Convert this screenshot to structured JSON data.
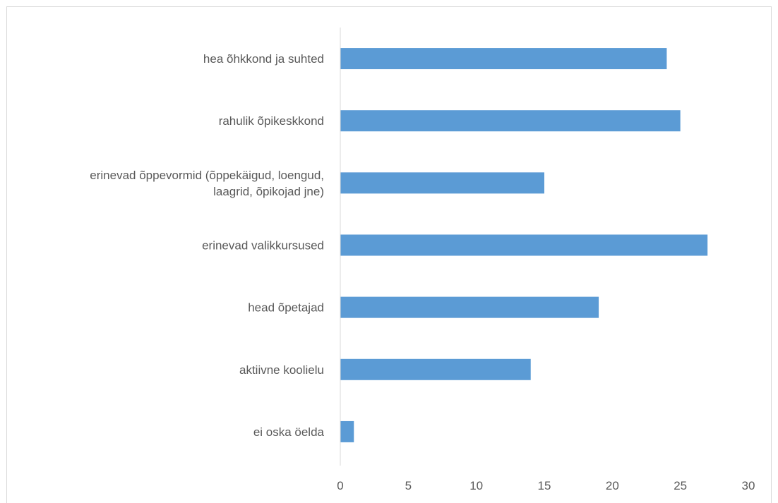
{
  "chart_data": {
    "type": "bar",
    "orientation": "horizontal",
    "categories": [
      [
        "hea õhkkond ja suhted"
      ],
      [
        "rahulik õpikeskkond"
      ],
      [
        "erinevad õppevormid (õppekäigud, loengud,",
        "laagrid, õpikojad jne)"
      ],
      [
        "erinevad valikkursused"
      ],
      [
        "head õpetajad"
      ],
      [
        "aktiivne koolielu"
      ],
      [
        "ei oska öelda"
      ]
    ],
    "values": [
      24,
      25,
      15,
      27,
      19,
      14,
      1
    ],
    "xlim": [
      0,
      30
    ],
    "xticks": [
      "0",
      "5",
      "10",
      "15",
      "20",
      "25",
      "30"
    ],
    "bar_color": "#5b9bd5",
    "axis_color": "#d9d9d9",
    "grid": false,
    "legend": "none",
    "title": "",
    "xlabel": "",
    "ylabel": ""
  }
}
